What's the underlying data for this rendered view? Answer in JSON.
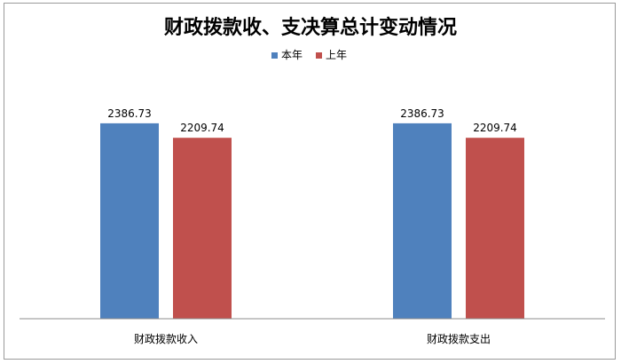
{
  "chart_data": {
    "type": "bar",
    "title": "财政拨款收、支决算总计变动情况",
    "categories": [
      "财政拨款收入",
      "财政拨款支出"
    ],
    "series": [
      {
        "name": "本年",
        "color": "#4F81BD",
        "values": [
          2386.73,
          2386.73
        ]
      },
      {
        "name": "上年",
        "color": "#C0504D",
        "values": [
          2209.74,
          2209.74
        ]
      }
    ],
    "value_labels": [
      [
        "2386.73",
        "2386.73"
      ],
      [
        "2209.74",
        "2209.74"
      ]
    ],
    "ylim": [
      0,
      2700
    ],
    "legend_position": "top-center",
    "grid": false
  }
}
